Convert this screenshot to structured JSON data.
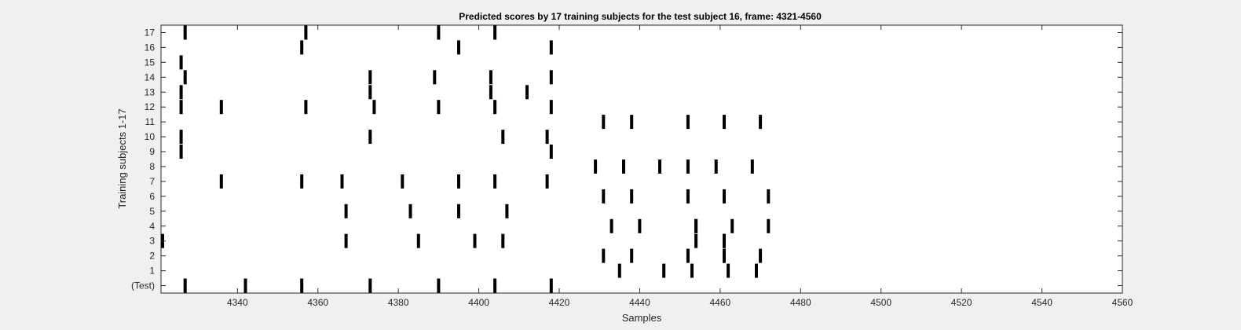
{
  "chart_data": {
    "type": "raster",
    "title": "Predicted scores by 17 training subjects for the test subject 16, frame: 4321-4560",
    "xlabel": "Samples",
    "ylabel": "Training subjects 1-17",
    "xlim": [
      4321,
      4560
    ],
    "ylim": [
      -0.5,
      17.5
    ],
    "xticks": [
      4340,
      4360,
      4380,
      4400,
      4420,
      4440,
      4460,
      4480,
      4500,
      4520,
      4540,
      4560
    ],
    "yticks": [
      {
        "value": 0,
        "label": "(Test)"
      },
      {
        "value": 1,
        "label": "1"
      },
      {
        "value": 2,
        "label": "2"
      },
      {
        "value": 3,
        "label": "3"
      },
      {
        "value": 4,
        "label": "4"
      },
      {
        "value": 5,
        "label": "5"
      },
      {
        "value": 6,
        "label": "6"
      },
      {
        "value": 7,
        "label": "7"
      },
      {
        "value": 8,
        "label": "8"
      },
      {
        "value": 9,
        "label": "9"
      },
      {
        "value": 10,
        "label": "10"
      },
      {
        "value": 11,
        "label": "11"
      },
      {
        "value": 12,
        "label": "12"
      },
      {
        "value": 13,
        "label": "13"
      },
      {
        "value": 14,
        "label": "14"
      },
      {
        "value": 15,
        "label": "15"
      },
      {
        "value": 16,
        "label": "16"
      },
      {
        "value": 17,
        "label": "17"
      }
    ],
    "grid": false,
    "mark_color": "#000000",
    "background_color": "#ffffff",
    "events": [
      {
        "row": 0,
        "x": [
          4327,
          4342,
          4356,
          4373,
          4390,
          4404,
          4418
        ]
      },
      {
        "row": 1,
        "x": [
          4435,
          4446,
          4453,
          4462,
          4469
        ]
      },
      {
        "row": 2,
        "x": [
          4431,
          4438,
          4452,
          4461,
          4461,
          4470
        ]
      },
      {
        "row": 3,
        "x": [
          4321,
          4367,
          4385,
          4399,
          4406,
          4454,
          4461,
          4461
        ]
      },
      {
        "row": 4,
        "x": [
          4433,
          4440,
          4454,
          4454,
          4463,
          4472
        ]
      },
      {
        "row": 5,
        "x": [
          4367,
          4383,
          4395,
          4407
        ]
      },
      {
        "row": 6,
        "x": [
          4431,
          4438,
          4452,
          4461,
          4472
        ]
      },
      {
        "row": 7,
        "x": [
          4336,
          4356,
          4366,
          4381,
          4395,
          4404,
          4417
        ]
      },
      {
        "row": 8,
        "x": [
          4429,
          4436,
          4445,
          4452,
          4459,
          4468
        ]
      },
      {
        "row": 9,
        "x": [
          4326,
          4418
        ]
      },
      {
        "row": 10,
        "x": [
          4326,
          4373,
          4406,
          4417
        ]
      },
      {
        "row": 11,
        "x": [
          4431,
          4438,
          4452,
          4461,
          4470
        ]
      },
      {
        "row": 12,
        "x": [
          4326,
          4336,
          4357,
          4374,
          4390,
          4404,
          4418
        ]
      },
      {
        "row": 13,
        "x": [
          4326,
          4373,
          4403,
          4412
        ]
      },
      {
        "row": 14,
        "x": [
          4327,
          4373,
          4389,
          4403,
          4418
        ]
      },
      {
        "row": 15,
        "x": [
          4326
        ]
      },
      {
        "row": 16,
        "x": [
          4356,
          4395,
          4418
        ]
      },
      {
        "row": 17,
        "x": [
          4327,
          4357,
          4390,
          4404
        ]
      }
    ]
  }
}
